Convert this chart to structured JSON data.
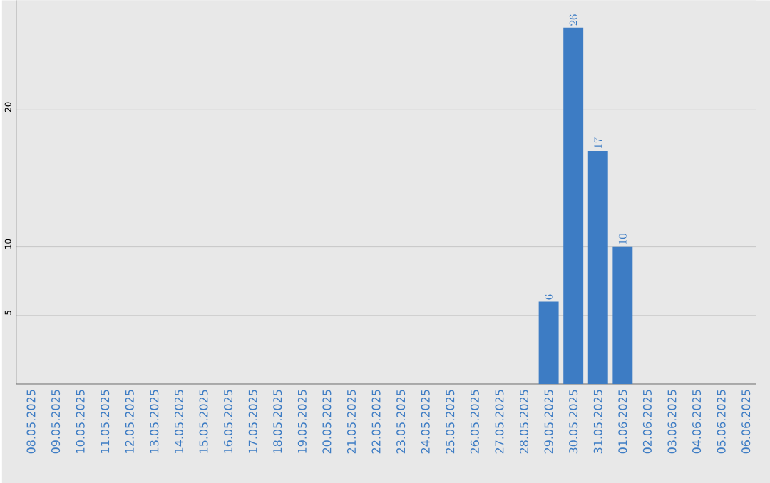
{
  "chart_data": {
    "type": "bar",
    "categories": [
      "08.05.2025",
      "09.05.2025",
      "10.05.2025",
      "11.05.2025",
      "12.05.2025",
      "13.05.2025",
      "14.05.2025",
      "15.05.2025",
      "16.05.2025",
      "17.05.2025",
      "18.05.2025",
      "19.05.2025",
      "20.05.2025",
      "21.05.2025",
      "22.05.2025",
      "23.05.2025",
      "24.05.2025",
      "25.05.2025",
      "26.05.2025",
      "27.05.2025",
      "28.05.2025",
      "29.05.2025",
      "30.05.2025",
      "31.05.2025",
      "01.06.2025",
      "02.06.2025",
      "03.06.2025",
      "04.06.2025",
      "05.06.2025",
      "06.06.2025"
    ],
    "values": [
      null,
      null,
      null,
      null,
      null,
      null,
      null,
      null,
      null,
      null,
      null,
      null,
      null,
      null,
      null,
      null,
      null,
      null,
      null,
      null,
      null,
      6,
      26,
      17,
      10,
      null,
      null,
      null,
      null,
      null
    ],
    "color": "#3d7cc4",
    "ylim": [
      0,
      28
    ],
    "yticks": [
      5,
      10,
      20
    ],
    "grid": "y",
    "data_labels": true
  }
}
